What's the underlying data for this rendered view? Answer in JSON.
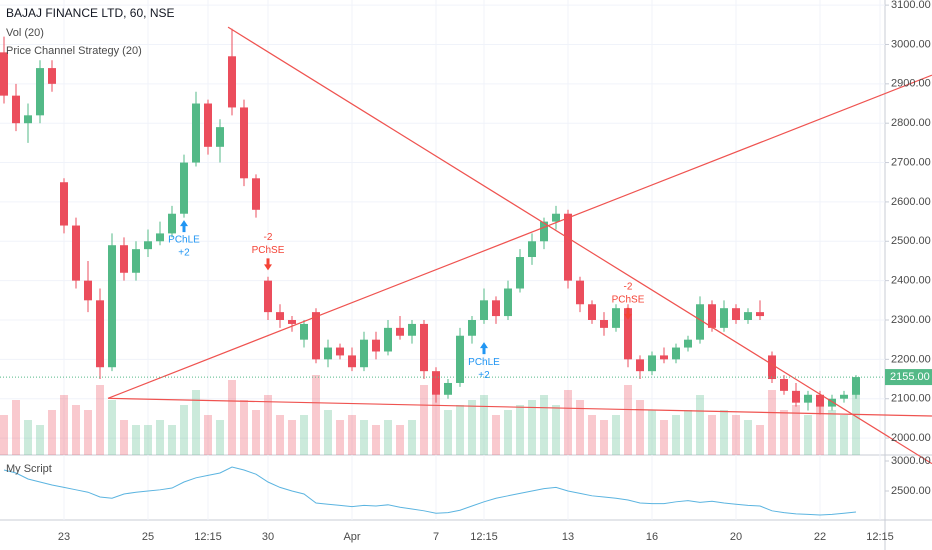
{
  "chart_data": [
    {
      "type": "candlestick",
      "title": "BAJAJ FINANCE LTD, 60, NSE",
      "indicators": [
        "Vol (20)",
        "Price Channel Strategy (20)"
      ],
      "categories": [
        null,
        null,
        null,
        null,
        null,
        "23",
        null,
        null,
        null,
        null,
        null,
        null,
        "25",
        null,
        null,
        null,
        null,
        "12:15",
        null,
        null,
        null,
        null,
        "30",
        null,
        null,
        null,
        null,
        null,
        null,
        "Apr",
        null,
        null,
        null,
        null,
        null,
        null,
        "7",
        null,
        null,
        null,
        "12:15",
        null,
        null,
        null,
        null,
        null,
        null,
        "13",
        null,
        null,
        null,
        null,
        null,
        null,
        "16",
        null,
        null,
        null,
        null,
        null,
        null,
        "20",
        null,
        null,
        null,
        null,
        null,
        null,
        "22",
        null,
        null,
        null,
        null,
        "12:15"
      ],
      "open": [
        2980,
        2870,
        2800,
        2820,
        2940,
        2650,
        2540,
        2400,
        2350,
        2180,
        2490,
        2420,
        2480,
        2500,
        2520,
        2570,
        2700,
        2850,
        2740,
        2970,
        2840,
        2660,
        2400,
        2320,
        2300,
        2250,
        2320,
        2200,
        2230,
        2210,
        2180,
        2250,
        2220,
        2280,
        2260,
        2290,
        2170,
        2110,
        2140,
        2260,
        2300,
        2350,
        2310,
        2380,
        2460,
        2500,
        2550,
        2570,
        2400,
        2340,
        2300,
        2280,
        2330,
        2200,
        2170,
        2210,
        2200,
        2230,
        2250,
        2340,
        2280,
        2330,
        2300,
        2320,
        2210,
        2150,
        2120,
        2090,
        2110,
        2080,
        2100,
        2110,
        null,
        null
      ],
      "high": [
        3020,
        2900,
        2850,
        2960,
        2960,
        2660,
        2560,
        2450,
        2380,
        2520,
        2510,
        2500,
        2530,
        2550,
        2590,
        2720,
        2880,
        2860,
        2810,
        3040,
        2860,
        2670,
        2410,
        2340,
        2310,
        2300,
        2330,
        2250,
        2240,
        2230,
        2270,
        2270,
        2300,
        2310,
        2300,
        2300,
        2180,
        2150,
        2280,
        2310,
        2380,
        2360,
        2400,
        2480,
        2520,
        2560,
        2590,
        2580,
        2410,
        2350,
        2320,
        2340,
        2340,
        2210,
        2220,
        2230,
        2240,
        2260,
        2360,
        2350,
        2350,
        2340,
        2330,
        2350,
        2220,
        2160,
        2140,
        2120,
        2120,
        2110,
        2120,
        2160,
        null,
        null
      ],
      "low": [
        2850,
        2780,
        2750,
        2800,
        2880,
        2520,
        2380,
        2320,
        2150,
        2170,
        2400,
        2400,
        2460,
        2490,
        2510,
        2560,
        2690,
        2720,
        2700,
        2820,
        2640,
        2560,
        2300,
        2280,
        2270,
        2230,
        2190,
        2180,
        2200,
        2170,
        2170,
        2200,
        2210,
        2250,
        2240,
        2150,
        2090,
        2100,
        2130,
        2240,
        2290,
        2290,
        2300,
        2370,
        2440,
        2480,
        2530,
        2380,
        2320,
        2290,
        2260,
        2270,
        2180,
        2150,
        2160,
        2190,
        2190,
        2220,
        2240,
        2270,
        2270,
        2290,
        2290,
        2300,
        2140,
        2110,
        2080,
        2070,
        2060,
        2070,
        2090,
        2100,
        null,
        null
      ],
      "close": [
        2870,
        2800,
        2820,
        2940,
        2900,
        2540,
        2400,
        2350,
        2180,
        2490,
        2420,
        2480,
        2500,
        2520,
        2570,
        2700,
        2850,
        2740,
        2790,
        2840,
        2660,
        2580,
        2320,
        2300,
        2290,
        2290,
        2200,
        2230,
        2210,
        2180,
        2250,
        2220,
        2280,
        2260,
        2290,
        2170,
        2110,
        2140,
        2260,
        2300,
        2350,
        2310,
        2380,
        2460,
        2500,
        2550,
        2570,
        2400,
        2340,
        2300,
        2280,
        2330,
        2200,
        2170,
        2210,
        2200,
        2230,
        2250,
        2340,
        2280,
        2330,
        2300,
        2320,
        2310,
        2150,
        2120,
        2090,
        2110,
        2080,
        2100,
        2110,
        2155,
        null,
        null
      ],
      "volume": [
        40,
        55,
        35,
        30,
        45,
        60,
        50,
        45,
        70,
        55,
        35,
        30,
        30,
        35,
        30,
        50,
        65,
        40,
        35,
        75,
        55,
        45,
        60,
        40,
        35,
        40,
        80,
        45,
        35,
        40,
        35,
        30,
        35,
        30,
        35,
        70,
        60,
        45,
        50,
        55,
        60,
        40,
        45,
        50,
        55,
        60,
        50,
        65,
        55,
        40,
        35,
        40,
        70,
        55,
        45,
        35,
        40,
        45,
        60,
        40,
        45,
        40,
        35,
        30,
        65,
        45,
        50,
        40,
        55,
        45,
        40,
        75,
        null,
        null
      ],
      "up_color": "#53b987",
      "down_color": "#eb4d5c",
      "line_color": "#ef5350",
      "ylim": [
        1957,
        3113
      ],
      "yticks": [
        {
          "value": 2000,
          "label": "2000.00"
        },
        {
          "value": 2100,
          "label": "2100.00"
        },
        {
          "value": 2200,
          "label": "2200.00"
        },
        {
          "value": 2300,
          "label": "2300.00"
        },
        {
          "value": 2400,
          "label": "2400.00"
        },
        {
          "value": 2500,
          "label": "2500.00"
        },
        {
          "value": 2600,
          "label": "2600.00"
        },
        {
          "value": 2700,
          "label": "2700.00"
        },
        {
          "value": 2800,
          "label": "2800.00"
        },
        {
          "value": 2900,
          "label": "2900.00"
        },
        {
          "value": 3000,
          "label": "3000.00"
        },
        {
          "value": 3100,
          "label": "3100.00"
        }
      ],
      "last_price": {
        "value": 2155,
        "label": "2155.00"
      },
      "trendlines": [
        {
          "x": [
            18.67,
            77.33
          ],
          "y": [
            3044,
            1935
          ]
        },
        {
          "x": [
            8.67,
            77.33
          ],
          "y": [
            2101,
            2922
          ]
        },
        {
          "x": [
            8.67,
            77.33
          ],
          "y": [
            2101,
            2056
          ]
        }
      ],
      "annotations": [
        {
          "label": "PChLE",
          "sub": "+2",
          "x": 15,
          "y": 2503,
          "side": "long"
        },
        {
          "label": "PChSE",
          "sub": "-2",
          "x": 22,
          "y": 2510,
          "side": "short"
        },
        {
          "label": "PChLE",
          "sub": "+2",
          "x": 40,
          "y": 2193,
          "side": "long"
        },
        {
          "label": "PChSE",
          "sub": "-2",
          "x": 52,
          "y": 2384,
          "side": "short"
        }
      ],
      "grid": true
    },
    {
      "type": "line",
      "title": "My Script",
      "color": "#5bb4e0",
      "values": [
        2850,
        2800,
        2700,
        2650,
        2600,
        2560,
        2520,
        2480,
        2400,
        2380,
        2450,
        2480,
        2500,
        2520,
        2550,
        2650,
        2720,
        2760,
        2800,
        2900,
        2850,
        2780,
        2650,
        2560,
        2500,
        2450,
        2300,
        2280,
        2260,
        2240,
        2260,
        2250,
        2270,
        2230,
        2200,
        2170,
        2130,
        2140,
        2180,
        2250,
        2320,
        2380,
        2420,
        2460,
        2500,
        2540,
        2560,
        2500,
        2460,
        2420,
        2400,
        2380,
        2350,
        2300,
        2290,
        2290,
        2320,
        2340,
        2310,
        2330,
        2300,
        2280,
        2260,
        2250,
        2170,
        2140,
        2120,
        2110,
        2100,
        2110,
        2130,
        2150,
        null,
        null
      ],
      "ylim": [
        2017,
        3100
      ],
      "yticks": [
        {
          "value": 2500,
          "label": "2500.00"
        },
        {
          "value": 3000,
          "label": "3000.00"
        }
      ]
    }
  ]
}
